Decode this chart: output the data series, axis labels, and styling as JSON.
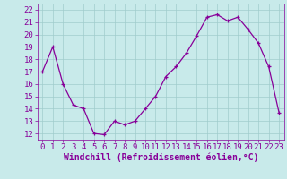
{
  "x": [
    0,
    1,
    2,
    3,
    4,
    5,
    6,
    7,
    8,
    9,
    10,
    11,
    12,
    13,
    14,
    15,
    16,
    17,
    18,
    19,
    20,
    21,
    22,
    23
  ],
  "y": [
    17.0,
    19.0,
    16.0,
    14.3,
    14.0,
    12.0,
    11.9,
    13.0,
    12.7,
    13.0,
    14.0,
    15.0,
    16.6,
    17.4,
    18.5,
    19.9,
    21.4,
    21.6,
    21.1,
    21.4,
    20.4,
    19.3,
    17.4,
    13.7
  ],
  "line_color": "#880099",
  "marker": "+",
  "marker_size": 3,
  "linewidth": 0.9,
  "background_color": "#c8eaea",
  "grid_color": "#a0cccc",
  "xlabel": "Windchill (Refroidissement éolien,°C)",
  "xlim": [
    -0.5,
    23.5
  ],
  "ylim": [
    11.5,
    22.5
  ],
  "yticks": [
    12,
    13,
    14,
    15,
    16,
    17,
    18,
    19,
    20,
    21,
    22
  ],
  "xticks": [
    0,
    1,
    2,
    3,
    4,
    5,
    6,
    7,
    8,
    9,
    10,
    11,
    12,
    13,
    14,
    15,
    16,
    17,
    18,
    19,
    20,
    21,
    22,
    23
  ],
  "tick_fontsize": 6.5,
  "xlabel_fontsize": 7.0
}
